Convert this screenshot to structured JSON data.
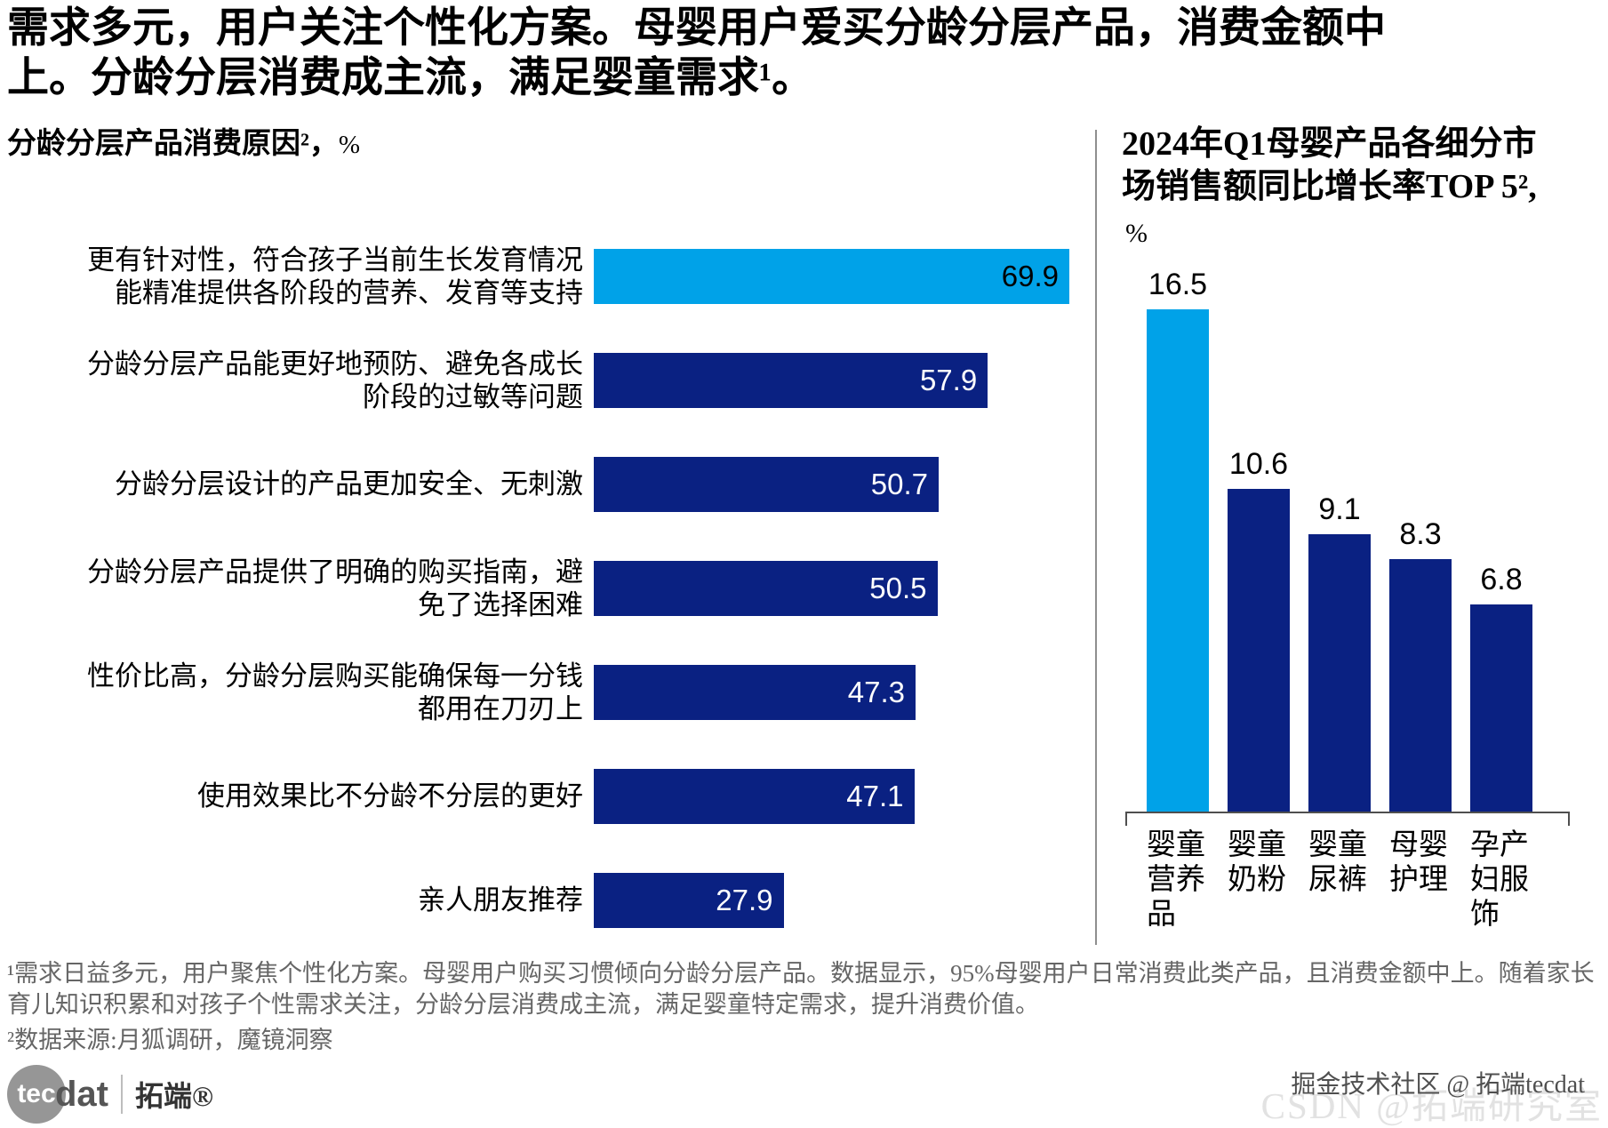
{
  "colors": {
    "accent_light_blue": "#00A2E8",
    "navy": "#0A2182",
    "title_text": "#000000",
    "footnote_gray": "#666666",
    "divider_gray": "#8F8F8F",
    "axis_gray": "#4F4F4F",
    "watermark_light": "#E2E2E2",
    "watermark_dark": "#4F4F4F"
  },
  "header": {
    "title_line1": "需求多元，用户关注个性化方案。母婴用户爱买分龄分层产品，消费金额中",
    "title_line2": "上。分龄分层消费成主流，满足婴童需求¹。"
  },
  "left_chart": {
    "title_main": "分龄分层产品消费原因²，",
    "title_unit": "%"
  },
  "right_chart": {
    "title_line1": "2024年Q1母婴产品各细分市",
    "title_line2": "场销售额同比增长率TOP 5²,",
    "unit_label": "%"
  },
  "chart_data": [
    {
      "type": "bar",
      "orientation": "horizontal",
      "title": "分龄分层产品消费原因²，%",
      "unit": "%",
      "categories": [
        "更有针对性，符合孩子当前生长发育情况能精准提供各阶段的营养、发育等支持",
        "分龄分层产品能更好地预防、避免各成长阶段的过敏等问题",
        "分龄分层设计的产品更加安全、无刺激",
        "分龄分层产品提供了明确的购买指南，避免了选择困难",
        "性价比高，分龄分层购买能确保每一分钱都用在刀刃上",
        "使用效果比不分龄不分层的更好",
        "亲人朋友推荐"
      ],
      "category_lines": [
        [
          "更有针对性，符合孩子当前生长发育情况",
          "能精准提供各阶段的营养、发育等支持"
        ],
        [
          "分龄分层产品能更好地预防、避免各成长",
          "阶段的过敏等问题"
        ],
        [
          "分龄分层设计的产品更加安全、无刺激"
        ],
        [
          "分龄分层产品提供了明确的购买指南，避",
          "免了选择困难"
        ],
        [
          "性价比高，分龄分层购买能确保每一分钱",
          "都用在刀刃上"
        ],
        [
          "使用效果比不分龄不分层的更好"
        ],
        [
          "亲人朋友推荐"
        ]
      ],
      "values": [
        69.9,
        57.9,
        50.7,
        50.5,
        47.3,
        47.1,
        27.9
      ],
      "xlim": [
        0,
        75
      ],
      "highlight_index": 0,
      "value_label_position": "inside-end",
      "grid": false,
      "legend": false
    },
    {
      "type": "bar",
      "orientation": "vertical",
      "title": "2024年Q1母婴产品各细分市场销售额同比增长率TOP 5²,",
      "ylabel": "%",
      "categories": [
        "婴童营养品",
        "婴童奶粉",
        "婴童尿裤",
        "母婴护理",
        "孕产妇服饰"
      ],
      "category_lines": [
        [
          "婴童",
          "营养",
          "品"
        ],
        [
          "婴童",
          "奶粉"
        ],
        [
          "婴童",
          "尿裤"
        ],
        [
          "母婴",
          "护理"
        ],
        [
          "孕产",
          "妇服",
          "饰"
        ]
      ],
      "values": [
        16.5,
        10.6,
        9.1,
        8.3,
        6.8
      ],
      "ylim": [
        0,
        18
      ],
      "highlight_index": 0,
      "value_label_position": "above",
      "grid": false,
      "legend": false
    }
  ],
  "footnotes": {
    "line1": "¹需求日益多元，用户聚焦个性化方案。母婴用户购买习惯倾向分龄分层产品。数据显示，95%母婴用户日常消费此类产品，且消费金额中上。随着家长",
    "line2": "育儿知识积累和对孩子个性需求关注，分龄分层消费成主流，满足婴童特定需求，提升消费价值。",
    "source": "²数据来源:月狐调研，魔镜洞察"
  },
  "footer": {
    "logo_tec": "tec",
    "logo_dat": "dat",
    "logo_cn": "拓端®",
    "watermark_top": "掘金技术社区 @ 拓端tecdat",
    "watermark_bottom": "CSDN @拓端研究室"
  }
}
